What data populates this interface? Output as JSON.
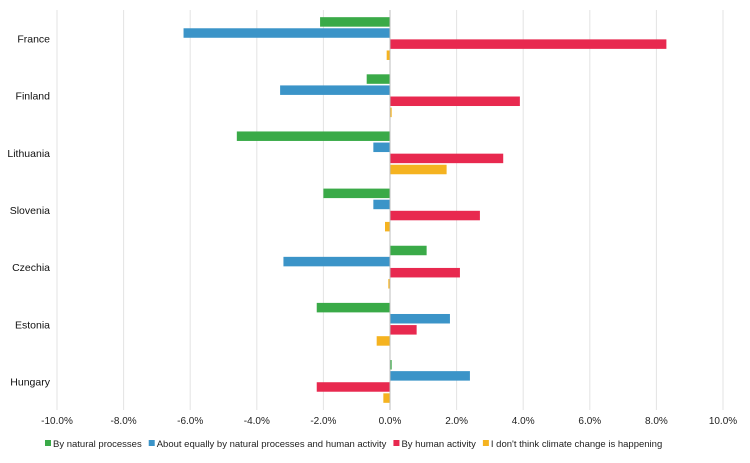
{
  "chart_data": {
    "type": "bar",
    "orientation": "horizontal",
    "categories": [
      "France",
      "Finland",
      "Lithuania",
      "Slovenia",
      "Czechia",
      "Estonia",
      "Hungary"
    ],
    "series": [
      {
        "name": "By natural processes",
        "color": "#3aaa48",
        "values": [
          -2.1,
          -0.7,
          -4.6,
          -2.0,
          1.1,
          -2.2,
          0.05
        ]
      },
      {
        "name": "About equally by natural processes and human activity",
        "color": "#3b94c8",
        "values": [
          -6.2,
          -3.3,
          -0.5,
          -0.5,
          -3.2,
          1.8,
          2.4
        ]
      },
      {
        "name": "By human activity",
        "color": "#e8294f",
        "values": [
          8.3,
          3.9,
          3.4,
          2.7,
          2.1,
          0.8,
          -2.2
        ]
      },
      {
        "name": "I don't think climate change is happening",
        "color": "#f5b320",
        "values": [
          -0.1,
          0.05,
          1.7,
          -0.15,
          -0.05,
          -0.4,
          -0.2
        ]
      }
    ],
    "xlim": [
      -10,
      10
    ],
    "x_ticks": [
      -10,
      -8,
      -6,
      -4,
      -2,
      0,
      2,
      4,
      6,
      8,
      10
    ],
    "x_tick_labels": [
      "-10.0%",
      "-8.0%",
      "-6.0%",
      "-4.0%",
      "-2.0%",
      "0.0%",
      "2.0%",
      "4.0%",
      "6.0%",
      "8.0%",
      "10.0%"
    ],
    "grid": true,
    "legend_position": "bottom",
    "title": "",
    "xlabel": "",
    "ylabel": ""
  }
}
